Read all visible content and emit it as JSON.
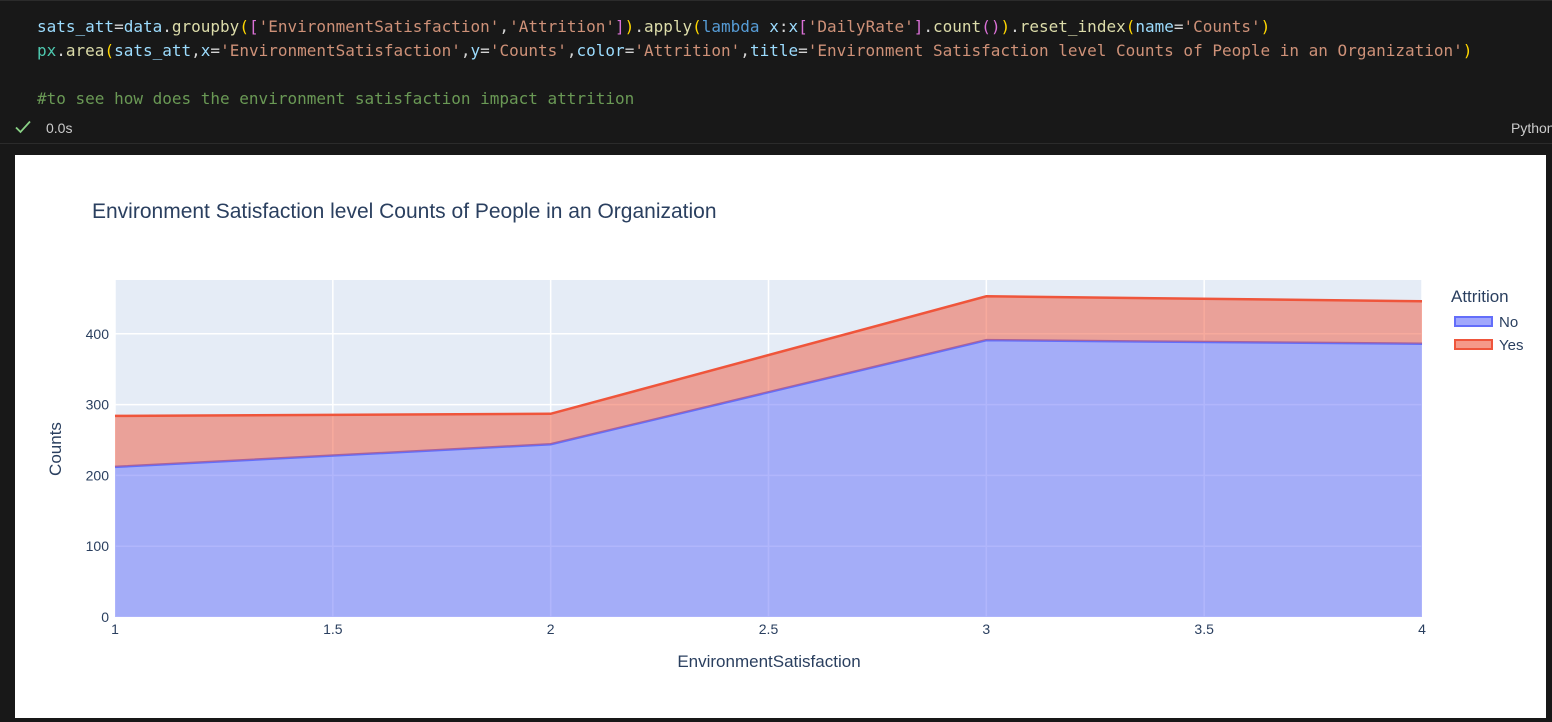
{
  "code": {
    "lines": [
      [
        {
          "t": "sats_att",
          "c": "#9cdcfe"
        },
        {
          "t": "=",
          "c": "#d4d4d4"
        },
        {
          "t": "data",
          "c": "#9cdcfe"
        },
        {
          "t": ".",
          "c": "#d4d4d4"
        },
        {
          "t": "groupby",
          "c": "#dcdcaa"
        },
        {
          "t": "(",
          "c": "#ffd700"
        },
        {
          "t": "[",
          "c": "#da70d6"
        },
        {
          "t": "'EnvironmentSatisfaction'",
          "c": "#ce9178"
        },
        {
          "t": ",",
          "c": "#d4d4d4"
        },
        {
          "t": "'Attrition'",
          "c": "#ce9178"
        },
        {
          "t": "]",
          "c": "#da70d6"
        },
        {
          "t": ")",
          "c": "#ffd700"
        },
        {
          "t": ".",
          "c": "#d4d4d4"
        },
        {
          "t": "apply",
          "c": "#dcdcaa"
        },
        {
          "t": "(",
          "c": "#ffd700"
        },
        {
          "t": "lambda",
          "c": "#569cd6"
        },
        {
          "t": " ",
          "c": "#d4d4d4"
        },
        {
          "t": "x",
          "c": "#9cdcfe"
        },
        {
          "t": ":",
          "c": "#d4d4d4"
        },
        {
          "t": "x",
          "c": "#9cdcfe"
        },
        {
          "t": "[",
          "c": "#da70d6"
        },
        {
          "t": "'DailyRate'",
          "c": "#ce9178"
        },
        {
          "t": "]",
          "c": "#da70d6"
        },
        {
          "t": ".",
          "c": "#d4d4d4"
        },
        {
          "t": "count",
          "c": "#dcdcaa"
        },
        {
          "t": "(",
          "c": "#da70d6"
        },
        {
          "t": ")",
          "c": "#da70d6"
        },
        {
          "t": ")",
          "c": "#ffd700"
        },
        {
          "t": ".",
          "c": "#d4d4d4"
        },
        {
          "t": "reset_index",
          "c": "#dcdcaa"
        },
        {
          "t": "(",
          "c": "#ffd700"
        },
        {
          "t": "name",
          "c": "#9cdcfe"
        },
        {
          "t": "=",
          "c": "#d4d4d4"
        },
        {
          "t": "'Counts'",
          "c": "#ce9178"
        },
        {
          "t": ")",
          "c": "#ffd700"
        }
      ],
      [
        {
          "t": "px",
          "c": "#4ec9b0"
        },
        {
          "t": ".",
          "c": "#d4d4d4"
        },
        {
          "t": "area",
          "c": "#dcdcaa"
        },
        {
          "t": "(",
          "c": "#ffd700"
        },
        {
          "t": "sats_att",
          "c": "#9cdcfe"
        },
        {
          "t": ",",
          "c": "#d4d4d4"
        },
        {
          "t": "x",
          "c": "#9cdcfe"
        },
        {
          "t": "=",
          "c": "#d4d4d4"
        },
        {
          "t": "'EnvironmentSatisfaction'",
          "c": "#ce9178"
        },
        {
          "t": ",",
          "c": "#d4d4d4"
        },
        {
          "t": "y",
          "c": "#9cdcfe"
        },
        {
          "t": "=",
          "c": "#d4d4d4"
        },
        {
          "t": "'Counts'",
          "c": "#ce9178"
        },
        {
          "t": ",",
          "c": "#d4d4d4"
        },
        {
          "t": "color",
          "c": "#9cdcfe"
        },
        {
          "t": "=",
          "c": "#d4d4d4"
        },
        {
          "t": "'Attrition'",
          "c": "#ce9178"
        },
        {
          "t": ",",
          "c": "#d4d4d4"
        },
        {
          "t": "title",
          "c": "#9cdcfe"
        },
        {
          "t": "=",
          "c": "#d4d4d4"
        },
        {
          "t": "'Environment Satisfaction level Counts of People in an Organization'",
          "c": "#ce9178"
        },
        {
          "t": ")",
          "c": "#ffd700"
        }
      ],
      [],
      [
        {
          "t": "#to see how does the environment satisfaction impact attrition",
          "c": "#6a9955"
        }
      ]
    ]
  },
  "status": {
    "exec_time": "0.0s",
    "language": "Python",
    "check_color": "#89d185"
  },
  "chart_data": {
    "type": "area",
    "title": "Environment Satisfaction level Counts of People in an Organization",
    "xlabel": "EnvironmentSatisfaction",
    "ylabel": "Counts",
    "x": [
      1,
      2,
      3,
      4
    ],
    "xlim": [
      1,
      4
    ],
    "ylim": [
      0,
      476
    ],
    "xticks": [
      "1",
      "1.5",
      "2",
      "2.5",
      "3",
      "3.5",
      "4"
    ],
    "yticks": [
      "0",
      "100",
      "200",
      "300",
      "400"
    ],
    "grid": true,
    "stacked": true,
    "legend_title": "Attrition",
    "legend_position": "right",
    "series": [
      {
        "name": "No",
        "values": [
          212,
          244,
          391,
          386
        ],
        "color": "#636efa"
      },
      {
        "name": "Yes",
        "values": [
          72,
          43,
          62,
          60
        ],
        "color": "#ef553b"
      }
    ]
  }
}
